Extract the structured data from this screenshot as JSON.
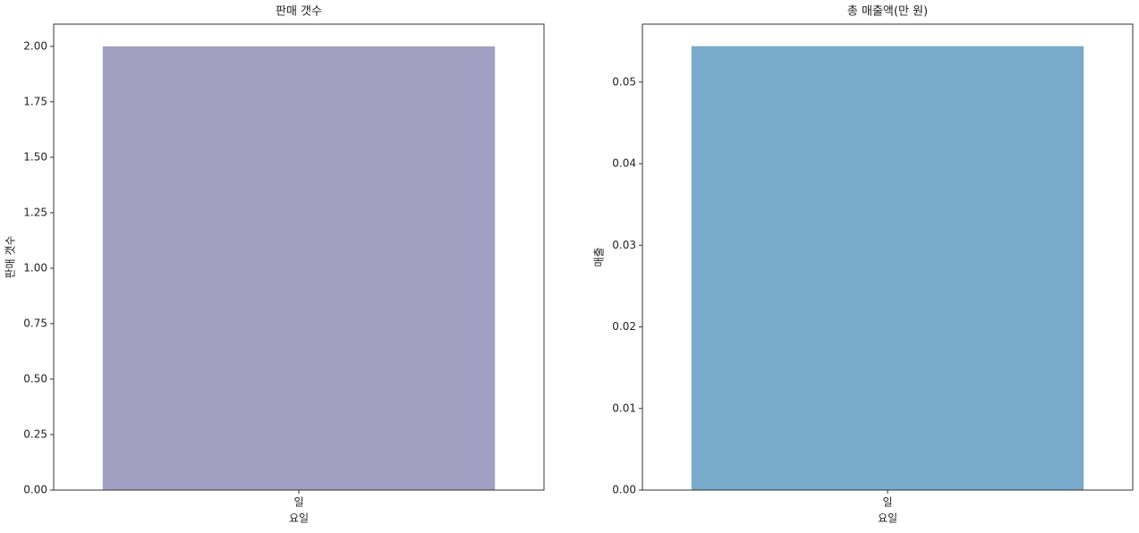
{
  "chart_data": [
    {
      "type": "bar",
      "title": "판매 갯수",
      "xlabel": "요일",
      "ylabel": "판매 갯수",
      "categories": [
        "일"
      ],
      "values": [
        2
      ],
      "color": "#a29fc3",
      "ylim": [
        0,
        2.1
      ],
      "yticks": [
        {
          "value": 0,
          "label": "0.00"
        },
        {
          "value": 0.25,
          "label": "0.25"
        },
        {
          "value": 0.5,
          "label": "0.50"
        },
        {
          "value": 0.75,
          "label": "0.75"
        },
        {
          "value": 1,
          "label": "1.00"
        },
        {
          "value": 1.25,
          "label": "1.25"
        },
        {
          "value": 1.5,
          "label": "1.50"
        },
        {
          "value": 1.75,
          "label": "1.75"
        },
        {
          "value": 2,
          "label": "2.00"
        }
      ]
    },
    {
      "type": "bar",
      "title": "총 매출액(만 원)",
      "xlabel": "요일",
      "ylabel": "매출",
      "categories": [
        "일"
      ],
      "values": [
        0.0544
      ],
      "color": "#78aacb",
      "ylim": [
        0,
        0.0571
      ],
      "yticks": [
        {
          "value": 0,
          "label": "0.00"
        },
        {
          "value": 0.01,
          "label": "0.01"
        },
        {
          "value": 0.02,
          "label": "0.02"
        },
        {
          "value": 0.03,
          "label": "0.03"
        },
        {
          "value": 0.04,
          "label": "0.04"
        },
        {
          "value": 0.05,
          "label": "0.05"
        }
      ]
    }
  ]
}
